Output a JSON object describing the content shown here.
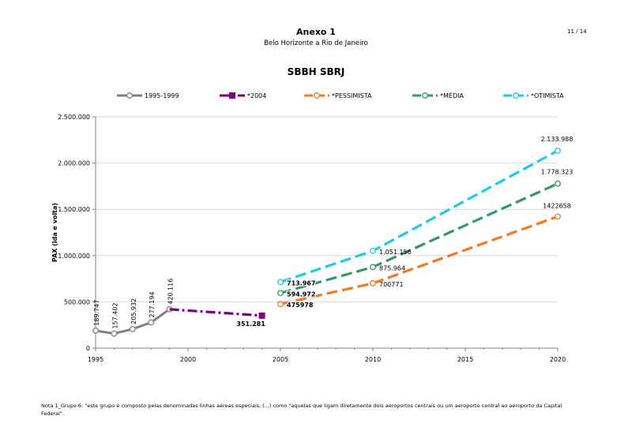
{
  "header": {
    "page": "11 / 14",
    "title": "Anexo 1",
    "subtitle": "Belo Horizonte a Rio de Janeiro"
  },
  "note": "Nota 1_Grupo 6: \"este grupo é composto pelas denominadas linhas aéreas especiais, (...) como \"aquelas que ligam diretamente dois aeroportos centrais ou um aeroporto central ao aeroporto da Capital Federal\".",
  "chart_data": {
    "type": "line",
    "title": "SBBH SBRJ",
    "xlabel": "",
    "ylabel": "PAX (ida e volta)",
    "xlim": [
      1995,
      2020
    ],
    "ylim": [
      0,
      2500000
    ],
    "x_ticks": [
      "1995",
      "2000",
      "2005",
      "2010",
      "2015",
      "2020"
    ],
    "y_ticks": [
      "0",
      "500.000",
      "1.000.000",
      "1.500.000",
      "2.000.000",
      "2.500.000"
    ],
    "grid": "horizontal",
    "legend_position": "top",
    "series": [
      {
        "name": "1995-1999",
        "color": "#808080",
        "style": "solid",
        "marker": "circle",
        "points": [
          [
            1995,
            189747
          ],
          [
            1996,
            157402
          ],
          [
            1997,
            205932
          ],
          [
            1998,
            277194
          ],
          [
            1999,
            420116
          ]
        ],
        "labels": [
          "189.747",
          "157.402",
          "205.932",
          "277.194",
          "420.116"
        ]
      },
      {
        "name": "*2004",
        "color": "#800080",
        "style": "dashdot",
        "marker": "square",
        "points": [
          [
            1999,
            420116
          ],
          [
            2004,
            351281
          ]
        ],
        "labels": [
          "",
          "351.281"
        ]
      },
      {
        "name": "*PESSIMISTA",
        "color": "#f47920",
        "style": "dashed",
        "marker": "circle",
        "points": [
          [
            2005,
            475978
          ],
          [
            2010,
            700771
          ],
          [
            2020,
            1422658
          ]
        ],
        "labels": [
          "475978",
          "700771",
          "1422658"
        ]
      },
      {
        "name": "*MÉDIA",
        "color": "#339966",
        "style": "dashed",
        "marker": "circle",
        "points": [
          [
            2005,
            594972
          ],
          [
            2010,
            875964
          ],
          [
            2020,
            1778323
          ]
        ],
        "labels": [
          "594.972",
          "875.964",
          "1.778.323"
        ]
      },
      {
        "name": "*OTIMISTA",
        "color": "#1ec8ee",
        "style": "dashed",
        "marker": "circle",
        "points": [
          [
            2005,
            713967
          ],
          [
            2010,
            1051156
          ],
          [
            2020,
            2133988
          ]
        ],
        "labels": [
          "713.967",
          "1.051.156",
          "2.133.988"
        ]
      }
    ]
  }
}
